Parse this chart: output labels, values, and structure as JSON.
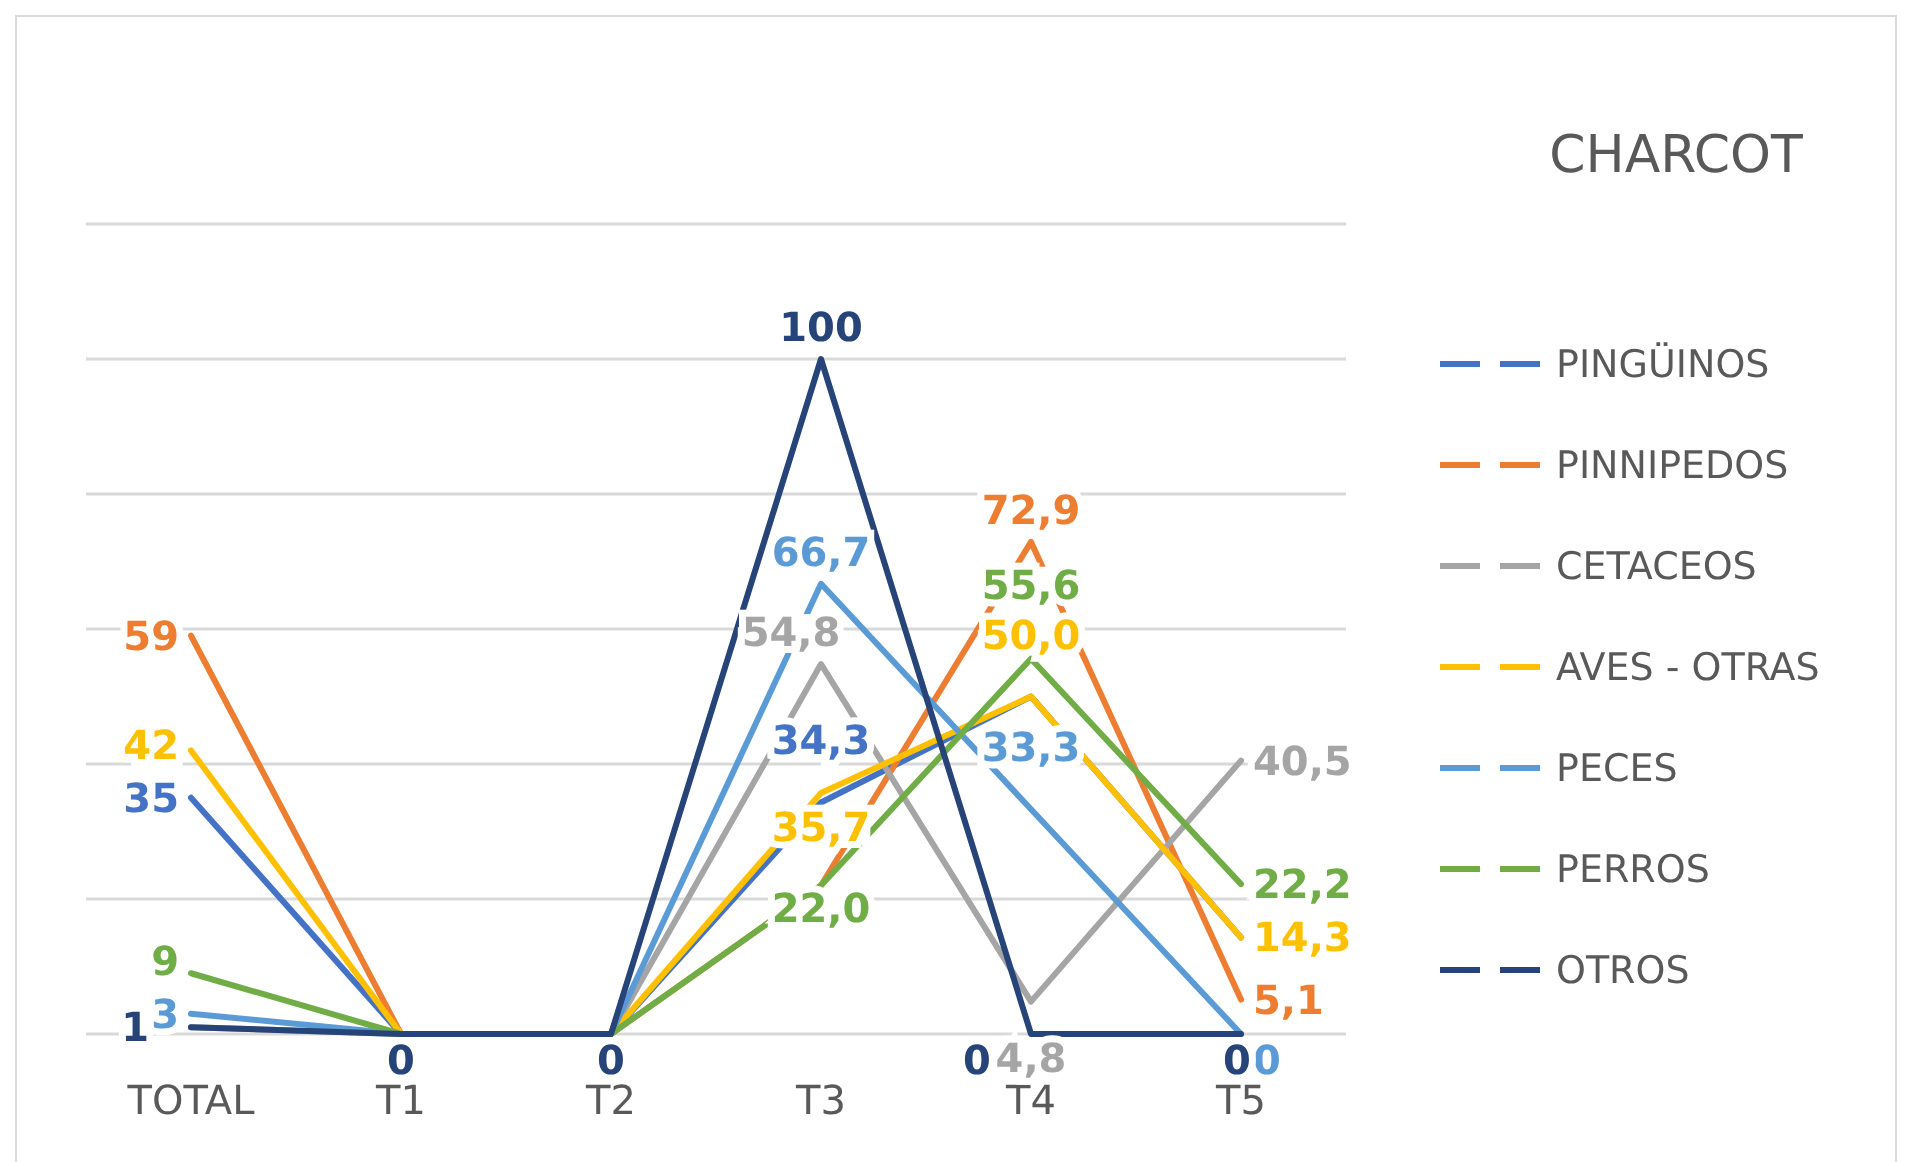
{
  "chart_data": {
    "type": "line",
    "title": "CHARCOT",
    "categories": [
      "TOTAL",
      "T1",
      "T2",
      "T3",
      "T4",
      "T5"
    ],
    "ylim": [
      0,
      120
    ],
    "yticks": [
      {
        "value": 0,
        "label": null
      },
      {
        "value": 20,
        "label": null
      },
      {
        "value": 40,
        "label": null
      },
      {
        "value": 60,
        "label": null
      },
      {
        "value": 80,
        "label": null
      },
      {
        "value": 100,
        "label": null
      },
      {
        "value": 120,
        "label": null
      }
    ],
    "tick_labels": "x",
    "grid": "y",
    "legend": "right",
    "marker": "none",
    "line_style": "solid",
    "series": [
      {
        "name": "PINGÜINOS",
        "color": "#4472c4",
        "values": [
          35,
          0,
          0,
          34.3,
          50.0,
          14.3
        ],
        "value_labels": [
          "35",
          null,
          null,
          "34,3",
          null,
          null
        ]
      },
      {
        "name": "PINNIPEDOS",
        "color": "#ed7d31",
        "values": [
          59,
          0,
          0,
          22.0,
          72.9,
          5.1
        ],
        "value_labels": [
          "59",
          null,
          null,
          null,
          "72,9",
          "5,1"
        ]
      },
      {
        "name": "CETACEOS",
        "color": "#a5a5a5",
        "values": [
          1,
          0,
          0,
          54.8,
          4.8,
          40.5
        ],
        "value_labels": [
          null,
          null,
          null,
          "54,8",
          "4,8",
          "40,5"
        ]
      },
      {
        "name": "AVES - OTRAS",
        "color": "#ffc000",
        "values": [
          42,
          0,
          0,
          35.7,
          50.0,
          14.3
        ],
        "value_labels": [
          "42",
          null,
          null,
          "35,7",
          "50,0",
          "14,3"
        ]
      },
      {
        "name": "PECES",
        "color": "#5b9bd5",
        "values": [
          3,
          0,
          0,
          66.7,
          33.3,
          0
        ],
        "value_labels": [
          "3",
          null,
          null,
          "66,7",
          "33,3",
          "0"
        ]
      },
      {
        "name": "PERROS",
        "color": "#70ad47",
        "values": [
          9,
          0,
          0,
          22.0,
          55.6,
          22.2
        ],
        "value_labels": [
          "9",
          null,
          null,
          "22,0",
          "55,6",
          "22,2"
        ]
      },
      {
        "name": "OTROS",
        "color": "#264478",
        "values": [
          1,
          0,
          0,
          100,
          0,
          0
        ],
        "value_labels": [
          "1",
          "0",
          "0",
          "100",
          "0",
          "0"
        ]
      }
    ]
  }
}
